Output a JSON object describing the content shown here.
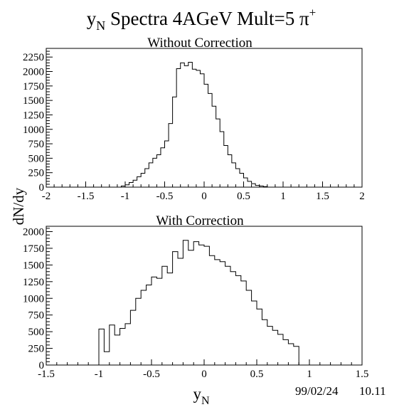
{
  "figure": {
    "title_main": "y",
    "title_sub": "N",
    "title_rest": " Spectra 4AGeV Mult=5 π",
    "title_sup": "+",
    "ylabel": "dN/dy",
    "xlabel_main": "y",
    "xlabel_sub": "N",
    "date": "99/02/24",
    "time": "10.11"
  },
  "chart_data": [
    {
      "type": "histogram",
      "title": "Without Correction",
      "xlim": [
        -2,
        2
      ],
      "ylim": [
        0,
        2400
      ],
      "xticks": [
        -2,
        -1.5,
        -1,
        -0.5,
        0,
        0.5,
        1,
        1.5,
        2
      ],
      "xtick_labels": [
        "-2",
        "-1.5",
        "-1",
        "-0.5",
        "0",
        "0.5",
        "1",
        "1.5",
        "2"
      ],
      "yticks": [
        0,
        250,
        500,
        750,
        1000,
        1250,
        1500,
        1750,
        2000,
        2250
      ],
      "ytick_labels": [
        "0",
        "250",
        "500",
        "750",
        "1000",
        "1250",
        "1500",
        "1750",
        "2000",
        "2250"
      ],
      "bin_start": -1.05,
      "bin_width": 0.05,
      "values": [
        20,
        40,
        80,
        120,
        180,
        240,
        320,
        420,
        500,
        560,
        680,
        800,
        1100,
        1560,
        2050,
        2150,
        2100,
        2160,
        2040,
        2020,
        1960,
        1780,
        1620,
        1400,
        1180,
        960,
        720,
        560,
        420,
        320,
        240,
        160,
        100,
        60,
        30,
        20,
        10
      ]
    },
    {
      "type": "histogram",
      "title": "With Correction",
      "xlim": [
        -1.5,
        1.5
      ],
      "ylim": [
        0,
        2080
      ],
      "xticks": [
        -1.5,
        -1,
        -0.5,
        0,
        0.5,
        1,
        1.5
      ],
      "xtick_labels": [
        "-1.5",
        "-1",
        "-0.5",
        "0",
        "0.5",
        "1",
        "1.5"
      ],
      "yticks": [
        0,
        250,
        500,
        750,
        1000,
        1250,
        1500,
        1750,
        2000
      ],
      "ytick_labels": [
        "0",
        "250",
        "500",
        "750",
        "1000",
        "1250",
        "1500",
        "1750",
        "2000"
      ],
      "bin_start": -1.0,
      "bin_width": 0.05,
      "values": [
        540,
        200,
        600,
        450,
        550,
        620,
        820,
        1000,
        1120,
        1200,
        1320,
        1300,
        1480,
        1380,
        1700,
        1600,
        1870,
        1720,
        1850,
        1800,
        1780,
        1640,
        1580,
        1550,
        1480,
        1400,
        1340,
        1260,
        1120,
        960,
        840,
        680,
        580,
        520,
        460,
        380,
        320,
        280
      ]
    }
  ]
}
